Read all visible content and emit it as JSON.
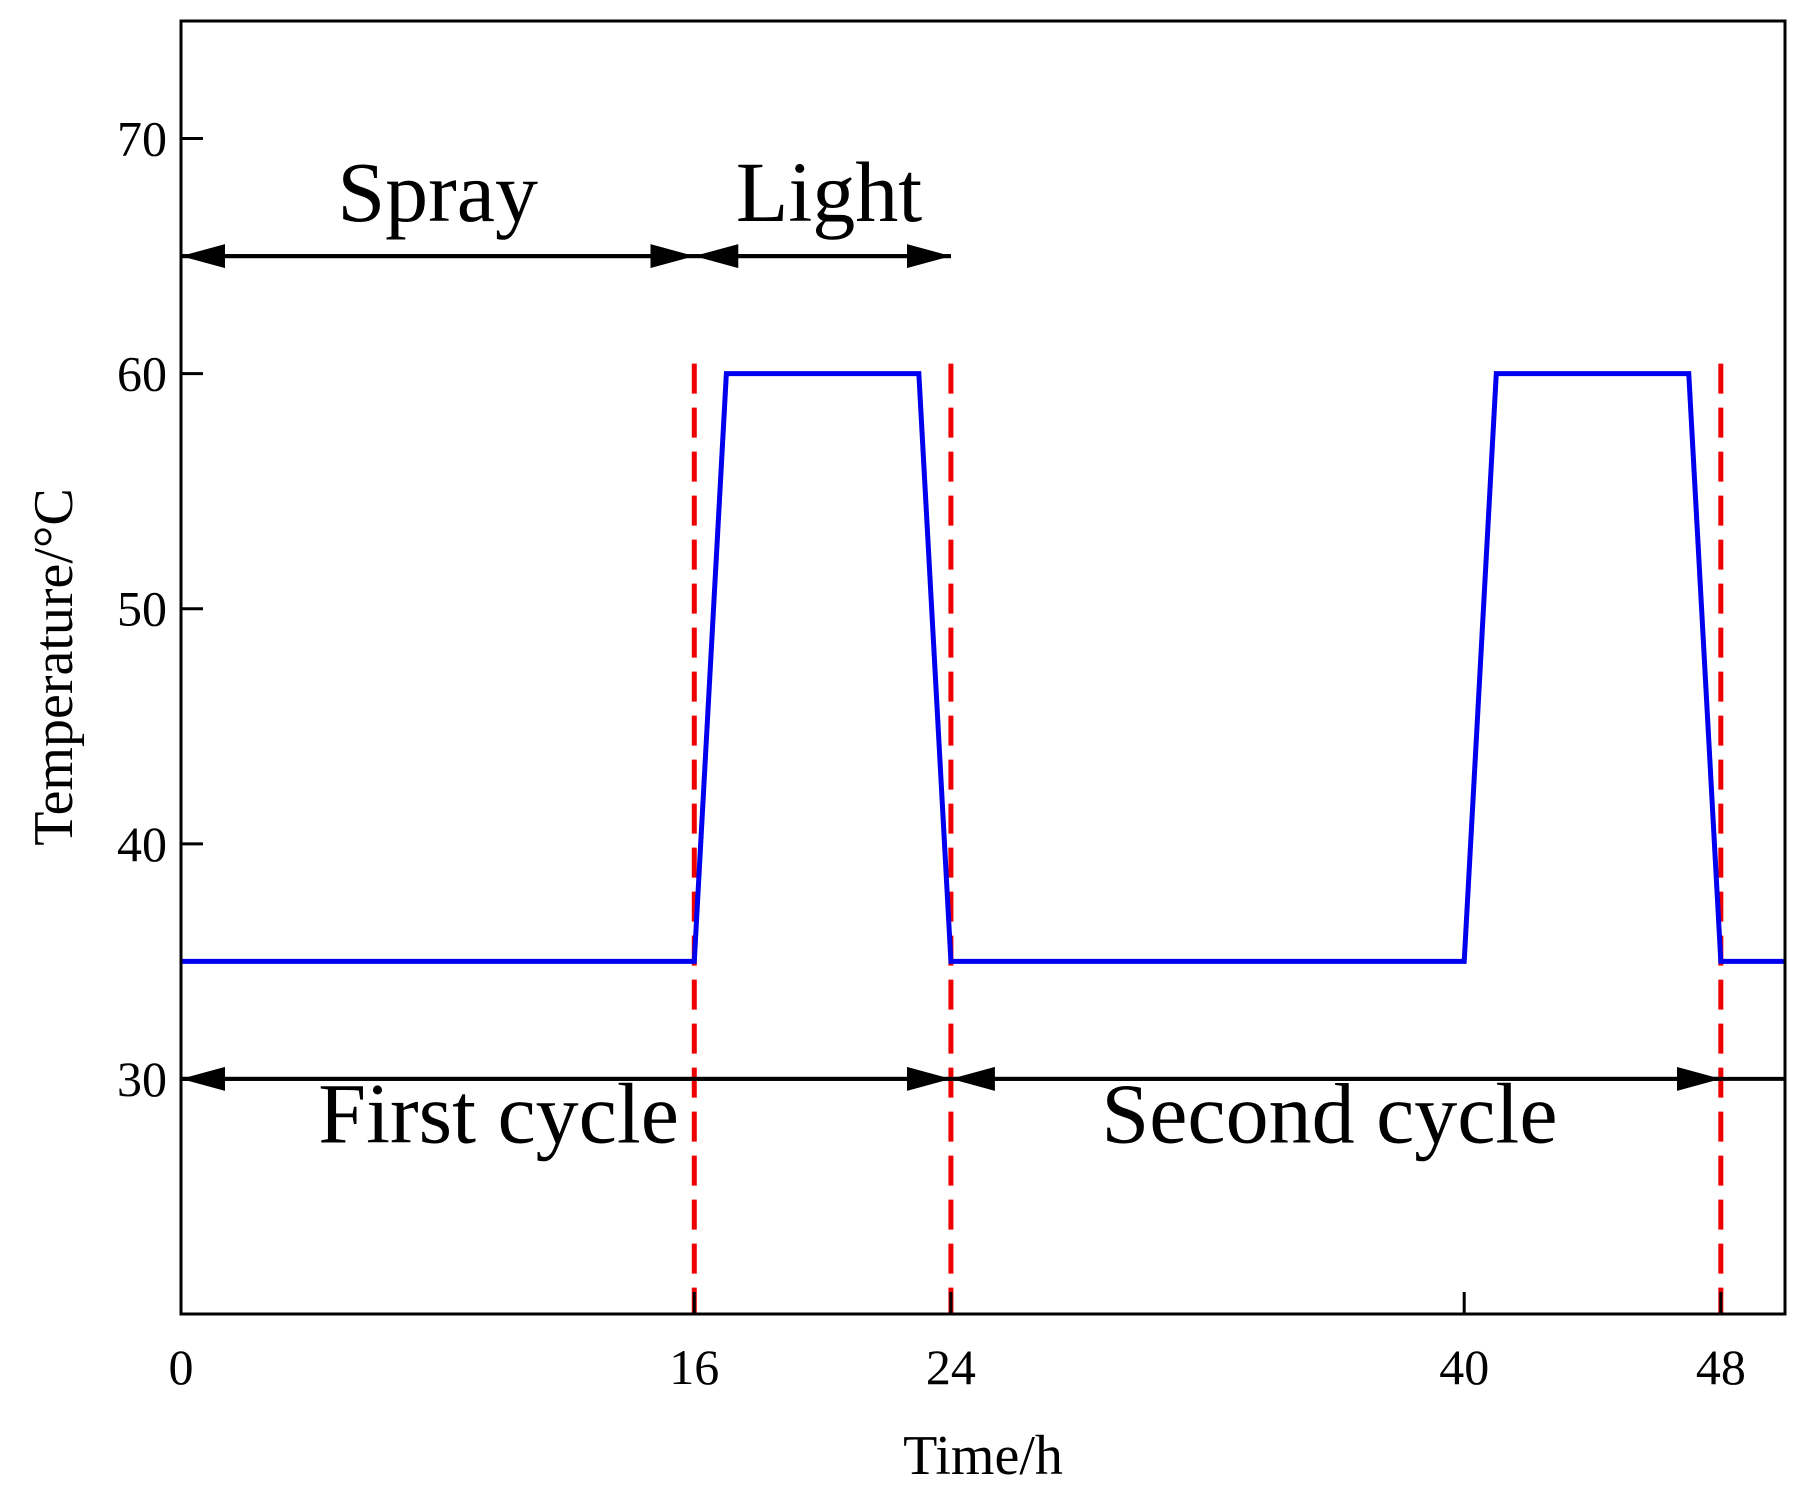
{
  "chart_data": {
    "type": "line",
    "title": "",
    "xlabel": "Time/h",
    "ylabel": "Temperature/°C",
    "xlim": [
      0,
      50
    ],
    "ylim": [
      20,
      75
    ],
    "x_ticks": [
      0,
      16,
      24,
      40,
      48
    ],
    "y_ticks": [
      30,
      40,
      50,
      60,
      70
    ],
    "grid": false,
    "series": [
      {
        "name": "Temperature",
        "color": "#0000ee",
        "x": [
          0,
          16,
          17,
          23,
          24,
          40,
          41,
          47,
          48,
          50
        ],
        "y": [
          35,
          35,
          60,
          60,
          35,
          35,
          60,
          60,
          35,
          35
        ]
      }
    ],
    "vlines": [
      {
        "x": 16,
        "color": "#ee0000",
        "style": "dashed"
      },
      {
        "x": 24,
        "color": "#ee0000",
        "style": "dashed"
      },
      {
        "x": 48,
        "color": "#ee0000",
        "style": "dashed"
      }
    ],
    "arrows": [
      {
        "y": 65,
        "x_start": 0,
        "x_end": 16,
        "label": "Spray"
      },
      {
        "y": 65,
        "x_start": 16,
        "x_end": 24,
        "label": "Light"
      },
      {
        "y": 30,
        "x_start": 0,
        "x_end": 24,
        "label": "First cycle"
      },
      {
        "y": 30,
        "x_start": 24,
        "x_end": 48,
        "label": "Second cycle"
      }
    ]
  }
}
